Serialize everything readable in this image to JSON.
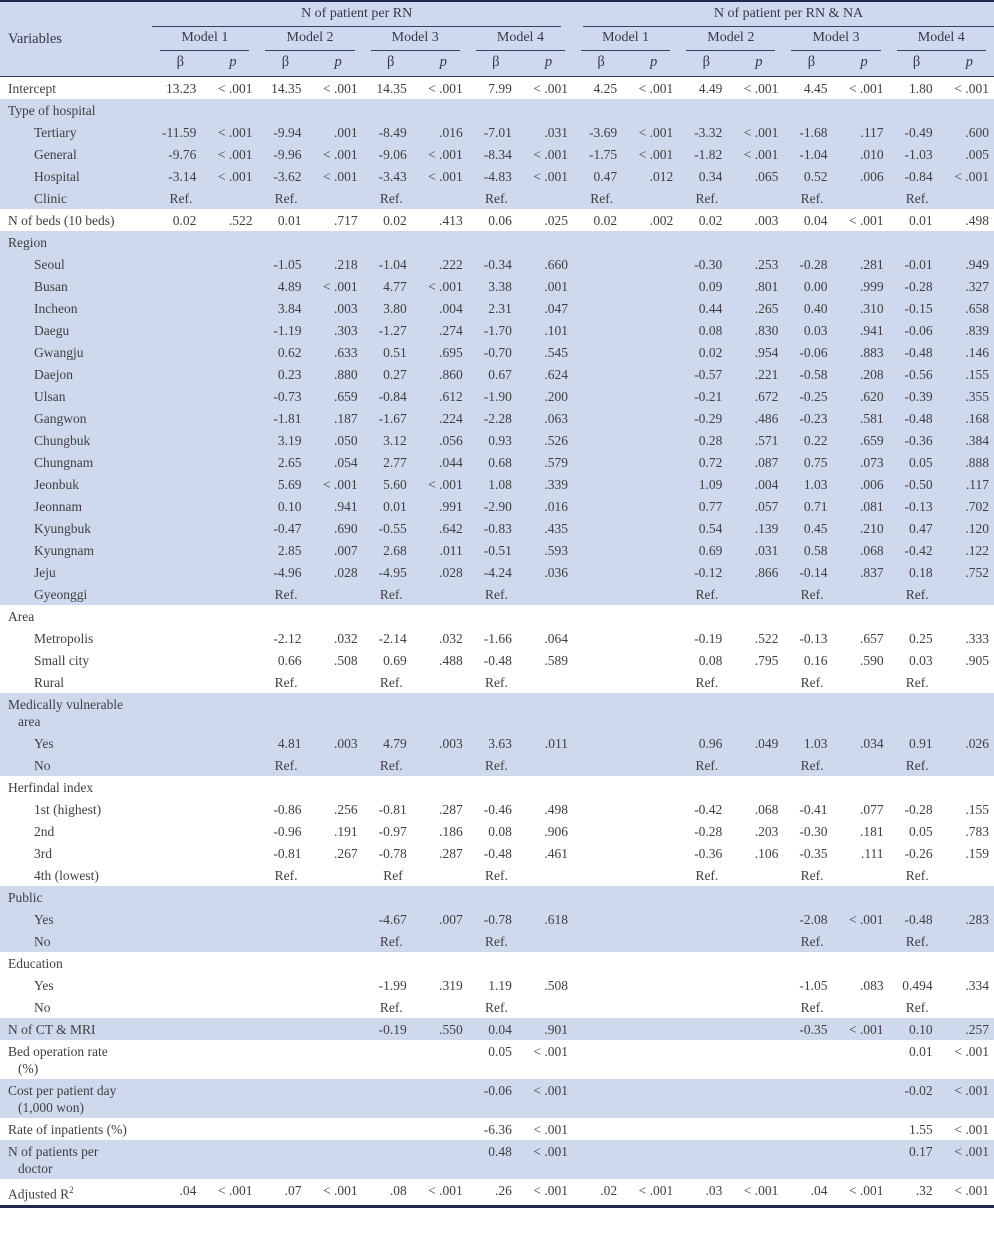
{
  "colors": {
    "row_shade": "#cfd9ee",
    "rule_line": "#31406b",
    "rule_heavy": "#1e2b4d",
    "text": "#3f3f3f"
  },
  "table": {
    "header": {
      "row_label": "Variables",
      "groups": [
        {
          "label": "N of patient per RN"
        },
        {
          "label": "N of patient per RN & NA"
        }
      ],
      "models": [
        "Model 1",
        "Model 2",
        "Model 3",
        "Model 4",
        "Model 1",
        "Model 2",
        "Model 3",
        "Model 4"
      ],
      "beta": "β",
      "p": "p"
    },
    "rows": [
      {
        "label": "Intercept",
        "indent": 0,
        "shade": false,
        "cells": [
          "13.23",
          "< .001",
          "14.35",
          "< .001",
          "14.35",
          "< .001",
          "7.99",
          "< .001",
          "4.25",
          "< .001",
          "4.49",
          "< .001",
          "4.45",
          "< .001",
          "1.80",
          "< .001"
        ]
      },
      {
        "label": "Type of hospital",
        "indent": 0,
        "shade": true
      },
      {
        "label": "Tertiary",
        "indent": 1,
        "shade": true,
        "cells": [
          "-11.59",
          "< .001",
          "-9.94",
          ".001",
          "-8.49",
          ".016",
          "-7.01",
          ".031",
          "-3.69",
          "< .001",
          "-3.32",
          "< .001",
          "-1.68",
          ".117",
          "-0.49",
          ".600"
        ]
      },
      {
        "label": "General",
        "indent": 1,
        "shade": true,
        "cells": [
          "-9.76",
          "< .001",
          "-9.96",
          "< .001",
          "-9.06",
          "< .001",
          "-8.34",
          "< .001",
          "-1.75",
          "< .001",
          "-1.82",
          "< .001",
          "-1.04",
          ".010",
          "-1.03",
          ".005"
        ]
      },
      {
        "label": "Hospital",
        "indent": 1,
        "shade": true,
        "cells": [
          "-3.14",
          "< .001",
          "-3.62",
          "< .001",
          "-3.43",
          "< .001",
          "-4.83",
          "< .001",
          "0.47",
          ".012",
          "0.34",
          ".065",
          "0.52",
          ".006",
          "-0.84",
          "< .001"
        ]
      },
      {
        "label": "Clinic",
        "indent": 1,
        "shade": true,
        "cells": [
          "Ref.",
          "",
          "Ref.",
          "",
          "Ref.",
          "",
          "Ref.",
          "",
          "Ref.",
          "",
          "Ref.",
          "",
          "Ref.",
          "",
          "Ref.",
          ""
        ]
      },
      {
        "label": "N of beds (10 beds)",
        "indent": 0,
        "shade": false,
        "cells": [
          "0.02",
          ".522",
          "0.01",
          ".717",
          "0.02",
          ".413",
          "0.06",
          ".025",
          "0.02",
          ".002",
          "0.02",
          ".003",
          "0.04",
          "< .001",
          "0.01",
          ".498"
        ]
      },
      {
        "label": "Region",
        "indent": 0,
        "shade": true
      },
      {
        "label": "Seoul",
        "indent": 1,
        "shade": true,
        "cells": [
          "",
          "",
          "-1.05",
          ".218",
          "-1.04",
          ".222",
          "-0.34",
          ".660",
          "",
          "",
          "-0.30",
          ".253",
          "-0.28",
          ".281",
          "-0.01",
          ".949"
        ]
      },
      {
        "label": "Busan",
        "indent": 1,
        "shade": true,
        "cells": [
          "",
          "",
          "4.89",
          "< .001",
          "4.77",
          "< .001",
          "3.38",
          ".001",
          "",
          "",
          "0.09",
          ".801",
          "0.00",
          ".999",
          "-0.28",
          ".327"
        ]
      },
      {
        "label": "Incheon",
        "indent": 1,
        "shade": true,
        "cells": [
          "",
          "",
          "3.84",
          ".003",
          "3.80",
          ".004",
          "2.31",
          ".047",
          "",
          "",
          "0.44",
          ".265",
          "0.40",
          ".310",
          "-0.15",
          ".658"
        ]
      },
      {
        "label": "Daegu",
        "indent": 1,
        "shade": true,
        "cells": [
          "",
          "",
          "-1.19",
          ".303",
          "-1.27",
          ".274",
          "-1.70",
          ".101",
          "",
          "",
          "0.08",
          ".830",
          "0.03",
          ".941",
          "-0.06",
          ".839"
        ]
      },
      {
        "label": "Gwangju",
        "indent": 1,
        "shade": true,
        "cells": [
          "",
          "",
          "0.62",
          ".633",
          "0.51",
          ".695",
          "-0.70",
          ".545",
          "",
          "",
          "0.02",
          ".954",
          "-0.06",
          ".883",
          "-0.48",
          ".146"
        ]
      },
      {
        "label": "Daejon",
        "indent": 1,
        "shade": true,
        "cells": [
          "",
          "",
          "0.23",
          ".880",
          "0.27",
          ".860",
          "0.67",
          ".624",
          "",
          "",
          "-0.57",
          ".221",
          "-0.58",
          ".208",
          "-0.56",
          ".155"
        ]
      },
      {
        "label": "Ulsan",
        "indent": 1,
        "shade": true,
        "cells": [
          "",
          "",
          "-0.73",
          ".659",
          "-0.84",
          ".612",
          "-1.90",
          ".200",
          "",
          "",
          "-0.21",
          ".672",
          "-0.25",
          ".620",
          "-0.39",
          ".355"
        ]
      },
      {
        "label": "Gangwon",
        "indent": 1,
        "shade": true,
        "cells": [
          "",
          "",
          "-1.81",
          ".187",
          "-1.67",
          ".224",
          "-2.28",
          ".063",
          "",
          "",
          "-0.29",
          ".486",
          "-0.23",
          ".581",
          "-0.48",
          ".168"
        ]
      },
      {
        "label": "Chungbuk",
        "indent": 1,
        "shade": true,
        "cells": [
          "",
          "",
          "3.19",
          ".050",
          "3.12",
          ".056",
          "0.93",
          ".526",
          "",
          "",
          "0.28",
          ".571",
          "0.22",
          ".659",
          "-0.36",
          ".384"
        ]
      },
      {
        "label": "Chungnam",
        "indent": 1,
        "shade": true,
        "cells": [
          "",
          "",
          "2.65",
          ".054",
          "2.77",
          ".044",
          "0.68",
          ".579",
          "",
          "",
          "0.72",
          ".087",
          "0.75",
          ".073",
          "0.05",
          ".888"
        ]
      },
      {
        "label": "Jeonbuk",
        "indent": 1,
        "shade": true,
        "cells": [
          "",
          "",
          "5.69",
          "< .001",
          "5.60",
          "< .001",
          "1.08",
          ".339",
          "",
          "",
          "1.09",
          ".004",
          "1.03",
          ".006",
          "-0.50",
          ".117"
        ]
      },
      {
        "label": "Jeonnam",
        "indent": 1,
        "shade": true,
        "cells": [
          "",
          "",
          "0.10",
          ".941",
          "0.01",
          ".991",
          "-2.90",
          ".016",
          "",
          "",
          "0.77",
          ".057",
          "0.71",
          ".081",
          "-0.13",
          ".702"
        ]
      },
      {
        "label": "Kyungbuk",
        "indent": 1,
        "shade": true,
        "cells": [
          "",
          "",
          "-0.47",
          ".690",
          "-0.55",
          ".642",
          "-0.83",
          ".435",
          "",
          "",
          "0.54",
          ".139",
          "0.45",
          ".210",
          "0.47",
          ".120"
        ]
      },
      {
        "label": "Kyungnam",
        "indent": 1,
        "shade": true,
        "cells": [
          "",
          "",
          "2.85",
          ".007",
          "2.68",
          ".011",
          "-0.51",
          ".593",
          "",
          "",
          "0.69",
          ".031",
          "0.58",
          ".068",
          "-0.42",
          ".122"
        ]
      },
      {
        "label": "Jeju",
        "indent": 1,
        "shade": true,
        "cells": [
          "",
          "",
          "-4.96",
          ".028",
          "-4.95",
          ".028",
          "-4.24",
          ".036",
          "",
          "",
          "-0.12",
          ".866",
          "-0.14",
          ".837",
          "0.18",
          ".752"
        ]
      },
      {
        "label": "Gyeonggi",
        "indent": 1,
        "shade": true,
        "cells": [
          "",
          "",
          "Ref.",
          "",
          "Ref.",
          "",
          "Ref.",
          "",
          "",
          "",
          "Ref.",
          "",
          "Ref.",
          "",
          "Ref.",
          ""
        ]
      },
      {
        "label": "Area",
        "indent": 0,
        "shade": false
      },
      {
        "label": "Metropolis",
        "indent": 1,
        "shade": false,
        "cells": [
          "",
          "",
          "-2.12",
          ".032",
          "-2.14",
          ".032",
          "-1.66",
          ".064",
          "",
          "",
          "-0.19",
          ".522",
          "-0.13",
          ".657",
          "0.25",
          ".333"
        ]
      },
      {
        "label": "Small city",
        "indent": 1,
        "shade": false,
        "cells": [
          "",
          "",
          "0.66",
          ".508",
          "0.69",
          ".488",
          "-0.48",
          ".589",
          "",
          "",
          "0.08",
          ".795",
          "0.16",
          ".590",
          "0.03",
          ".905"
        ]
      },
      {
        "label": "Rural",
        "indent": 1,
        "shade": false,
        "cells": [
          "",
          "",
          "Ref.",
          "",
          "Ref.",
          "",
          "Ref.",
          "",
          "",
          "",
          "Ref.",
          "",
          "Ref.",
          "",
          "Ref.",
          ""
        ]
      },
      {
        "label": "Medically vulnerable",
        "label2": "area",
        "indent": 0,
        "shade": true
      },
      {
        "label": "Yes",
        "indent": 1,
        "shade": true,
        "cells": [
          "",
          "",
          "4.81",
          ".003",
          "4.79",
          ".003",
          "3.63",
          ".011",
          "",
          "",
          "0.96",
          ".049",
          "1.03",
          ".034",
          "0.91",
          ".026"
        ]
      },
      {
        "label": "No",
        "indent": 1,
        "shade": true,
        "cells": [
          "",
          "",
          "Ref.",
          "",
          "Ref.",
          "",
          "Ref.",
          "",
          "",
          "",
          "Ref.",
          "",
          "Ref.",
          "",
          "Ref.",
          ""
        ]
      },
      {
        "label": "Herfindal index",
        "indent": 0,
        "shade": false
      },
      {
        "label": "1st (highest)",
        "indent": 1,
        "shade": false,
        "cells": [
          "",
          "",
          "-0.86",
          ".256",
          "-0.81",
          ".287",
          "-0.46",
          ".498",
          "",
          "",
          "-0.42",
          ".068",
          "-0.41",
          ".077",
          "-0.28",
          ".155"
        ]
      },
      {
        "label": "2nd",
        "indent": 1,
        "shade": false,
        "cells": [
          "",
          "",
          "-0.96",
          ".191",
          "-0.97",
          ".186",
          "0.08",
          ".906",
          "",
          "",
          "-0.28",
          ".203",
          "-0.30",
          ".181",
          "0.05",
          ".783"
        ]
      },
      {
        "label": "3rd",
        "indent": 1,
        "shade": false,
        "cells": [
          "",
          "",
          "-0.81",
          ".267",
          "-0.78",
          ".287",
          "-0.48",
          ".461",
          "",
          "",
          "-0.36",
          ".106",
          "-0.35",
          ".111",
          "-0.26",
          ".159"
        ]
      },
      {
        "label": "4th (lowest)",
        "indent": 1,
        "shade": false,
        "cells": [
          "",
          "",
          "Ref.",
          "",
          "Ref",
          "",
          "Ref.",
          "",
          "",
          "",
          "Ref.",
          "",
          "Ref.",
          "",
          "Ref.",
          ""
        ]
      },
      {
        "label": "Public",
        "indent": 0,
        "shade": true
      },
      {
        "label": "Yes",
        "indent": 1,
        "shade": true,
        "cells": [
          "",
          "",
          "",
          "",
          "-4.67",
          ".007",
          "-0.78",
          ".618",
          "",
          "",
          "",
          "",
          "-2.08",
          "< .001",
          "-0.48",
          ".283"
        ]
      },
      {
        "label": "No",
        "indent": 1,
        "shade": true,
        "cells": [
          "",
          "",
          "",
          "",
          "Ref.",
          "",
          "Ref.",
          "",
          "",
          "",
          "",
          "",
          "Ref.",
          "",
          "Ref.",
          ""
        ]
      },
      {
        "label": "Education",
        "indent": 0,
        "shade": false
      },
      {
        "label": "Yes",
        "indent": 1,
        "shade": false,
        "cells": [
          "",
          "",
          "",
          "",
          "-1.99",
          ".319",
          "1.19",
          ".508",
          "",
          "",
          "",
          "",
          "-1.05",
          ".083",
          "0.494",
          ".334"
        ]
      },
      {
        "label": "No",
        "indent": 1,
        "shade": false,
        "cells": [
          "",
          "",
          "",
          "",
          "Ref.",
          "",
          "Ref.",
          "",
          "",
          "",
          "",
          "",
          "Ref.",
          "",
          "Ref.",
          ""
        ]
      },
      {
        "label": "N of CT & MRI",
        "indent": 0,
        "shade": true,
        "cells": [
          "",
          "",
          "",
          "",
          "-0.19",
          ".550",
          "0.04",
          ".901",
          "",
          "",
          "",
          "",
          "-0.35",
          "< .001",
          "0.10",
          ".257"
        ]
      },
      {
        "label": "Bed operation rate",
        "label2": "(%)",
        "indent": 0,
        "shade": false,
        "cells": [
          "",
          "",
          "",
          "",
          "",
          "",
          "0.05",
          "< .001",
          "",
          "",
          "",
          "",
          "",
          "",
          "0.01",
          "< .001"
        ]
      },
      {
        "label": "Cost per patient day",
        "label2": "(1,000 won)",
        "indent": 0,
        "shade": true,
        "cells": [
          "",
          "",
          "",
          "",
          "",
          "",
          "-0.06",
          "< .001",
          "",
          "",
          "",
          "",
          "",
          "",
          "-0.02",
          "< .001"
        ]
      },
      {
        "label": "Rate of inpatients (%)",
        "indent": 0,
        "shade": false,
        "cells": [
          "",
          "",
          "",
          "",
          "",
          "",
          "-6.36",
          "< .001",
          "",
          "",
          "",
          "",
          "",
          "",
          "1.55",
          "< .001"
        ]
      },
      {
        "label": "N of patients per",
        "label2": "doctor",
        "indent": 0,
        "shade": true,
        "cells": [
          "",
          "",
          "",
          "",
          "",
          "",
          "0.48",
          "< .001",
          "",
          "",
          "",
          "",
          "",
          "",
          "0.17",
          "< .001"
        ]
      },
      {
        "label": "Adjusted R",
        "sup": "2",
        "indent": 0,
        "shade": false,
        "cells": [
          ".04",
          "< .001",
          ".07",
          "< .001",
          ".08",
          "< .001",
          ".26",
          "< .001",
          ".02",
          "< .001",
          ".03",
          "< .001",
          ".04",
          "< .001",
          ".32",
          "< .001"
        ]
      }
    ]
  }
}
